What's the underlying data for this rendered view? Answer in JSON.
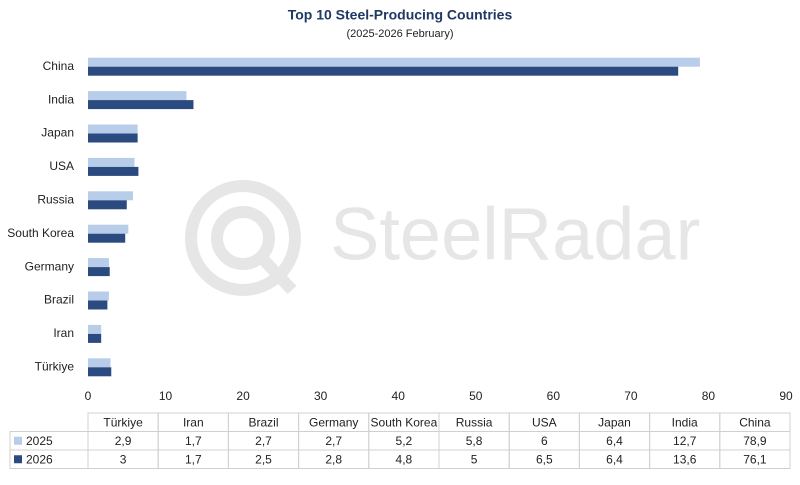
{
  "chart_data": {
    "type": "bar",
    "orientation": "horizontal",
    "title": "Top 10 Steel-Producing Countries",
    "subtitle": "(2025-2026 February)",
    "watermark": "SteelRadar",
    "categories": [
      "Türkiye",
      "Iran",
      "Brazil",
      "Germany",
      "South Korea",
      "Russia",
      "USA",
      "Japan",
      "India",
      "China"
    ],
    "series": [
      {
        "name": "2025",
        "color": "#b8cde9",
        "values": [
          2.9,
          1.7,
          2.7,
          2.7,
          5.2,
          5.8,
          6,
          6.4,
          12.7,
          78.9
        ],
        "value_labels": [
          "2,9",
          "1,7",
          "2,7",
          "2,7",
          "5,2",
          "5,8",
          "6",
          "6,4",
          "12,7",
          "78,9"
        ]
      },
      {
        "name": "2026",
        "color": "#2b4a80",
        "values": [
          3,
          1.7,
          2.5,
          2.8,
          4.8,
          5,
          6.5,
          6.4,
          13.6,
          76.1
        ],
        "value_labels": [
          "3",
          "1,7",
          "2,5",
          "2,8",
          "4,8",
          "5",
          "6,5",
          "6,4",
          "13,6",
          "76,1"
        ]
      }
    ],
    "xlim": [
      0,
      90
    ],
    "xticks": [
      0,
      10,
      20,
      30,
      40,
      50,
      60,
      70,
      80,
      90
    ],
    "grid": false,
    "legend": "table"
  }
}
